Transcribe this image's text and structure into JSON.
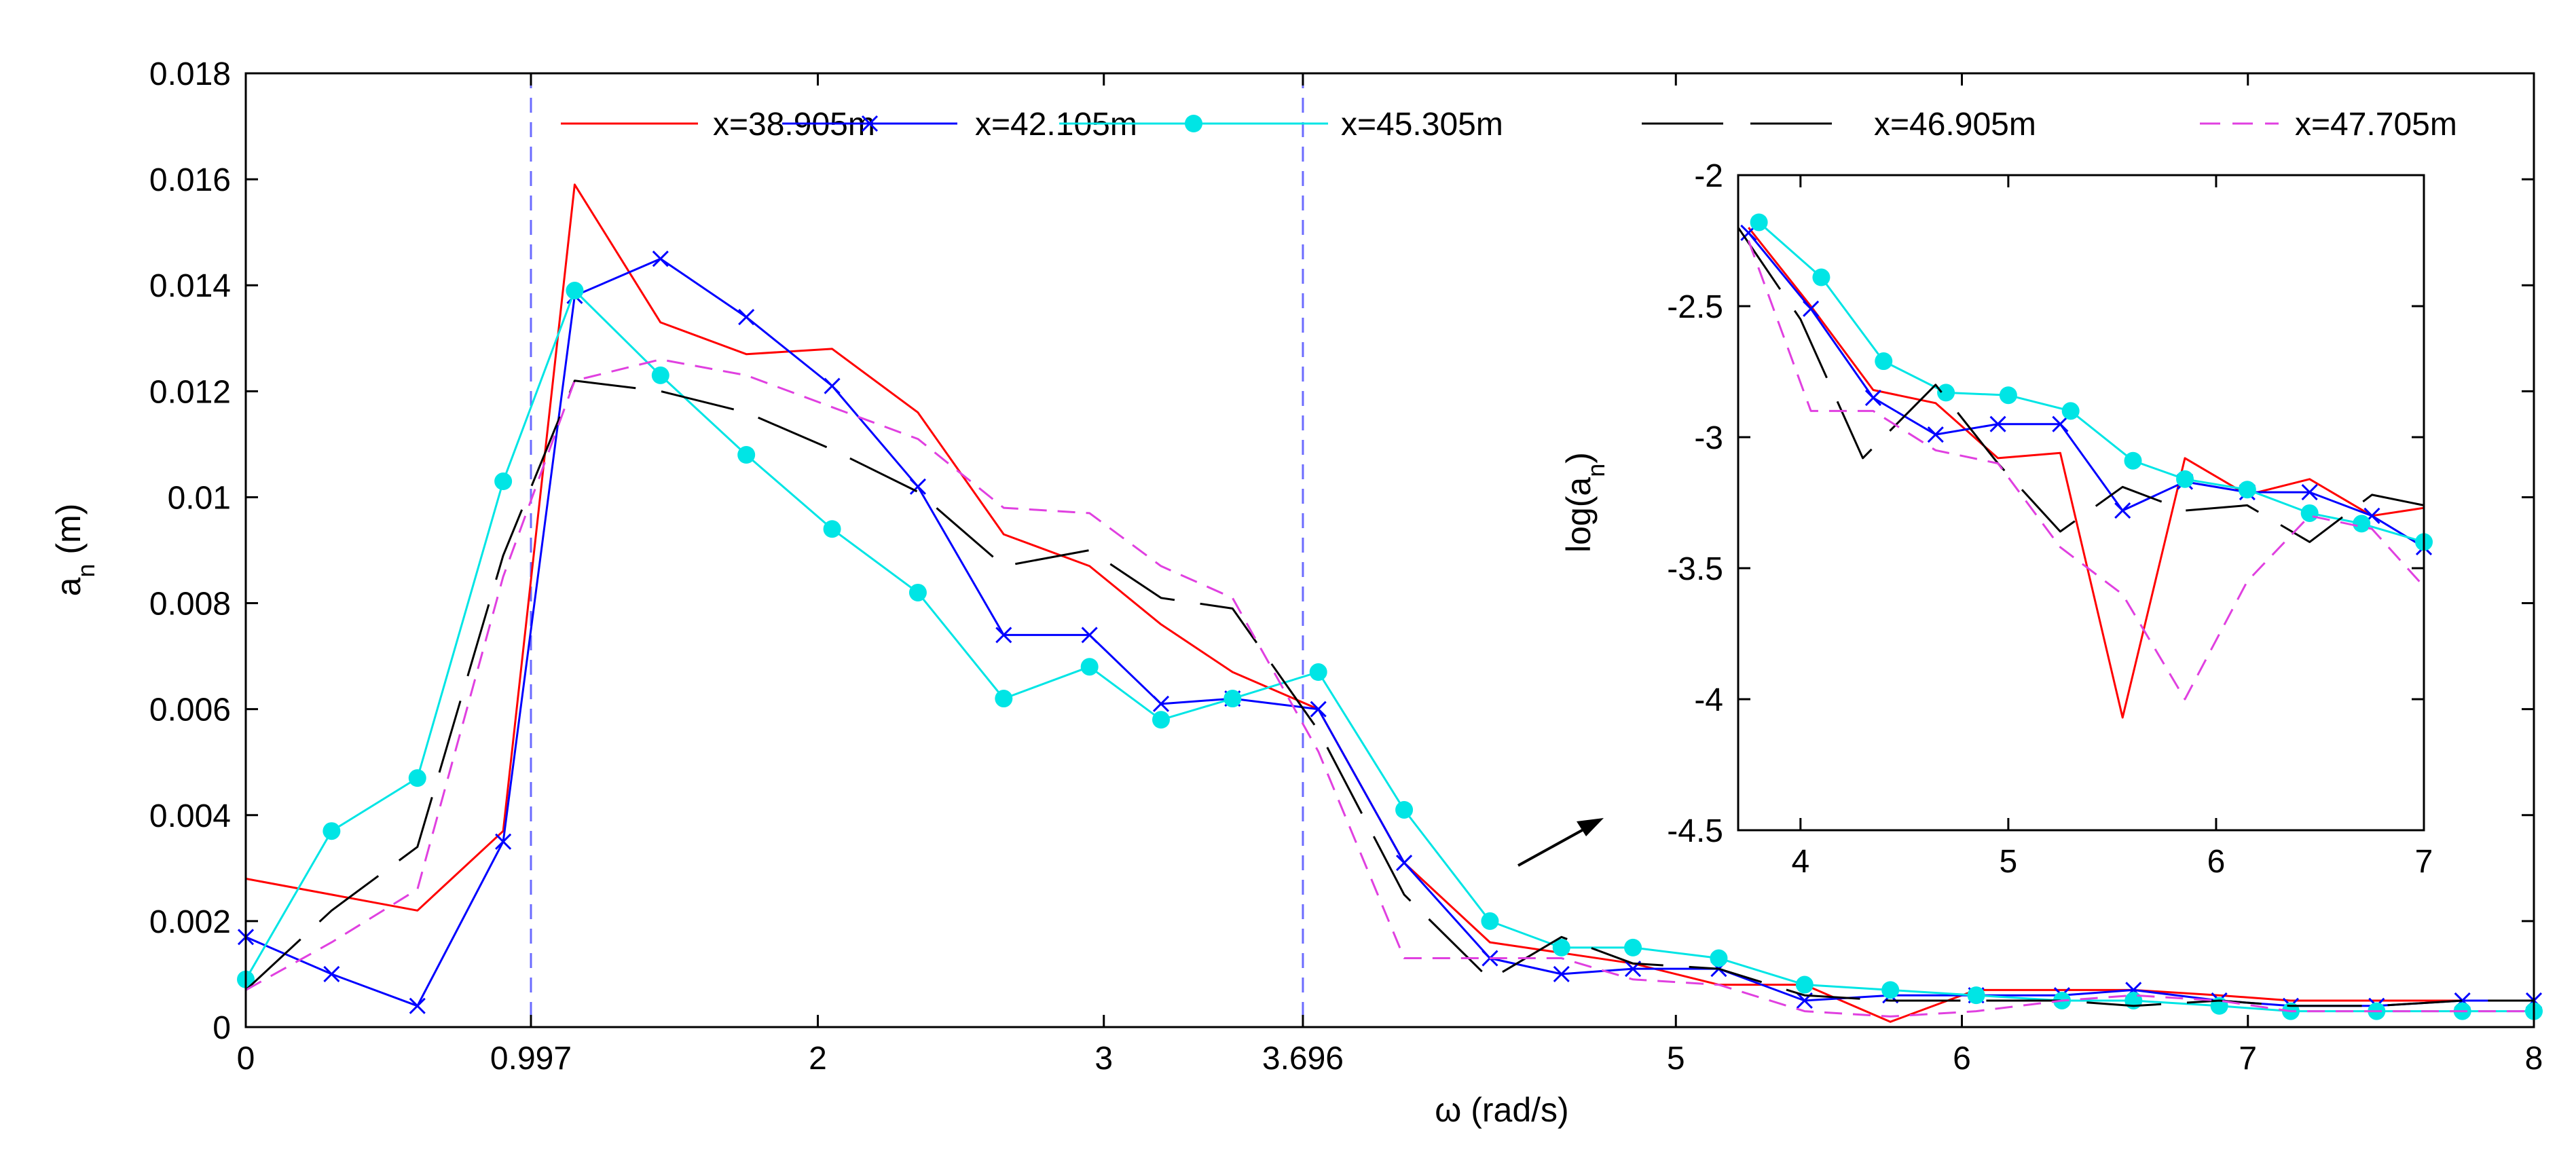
{
  "chart_data": [
    {
      "type": "line",
      "name": "main",
      "xlabel": "ω (rad/s)",
      "ylabel": "a_n (m)",
      "ylabel_base": "a",
      "ylabel_sub": "n",
      "ylabel_unit": " (m)",
      "xlim": [
        0,
        8
      ],
      "ylim": [
        0,
        0.018
      ],
      "xticks": [
        0,
        0.997,
        2,
        3,
        3.696,
        5,
        6,
        7,
        8
      ],
      "xtick_labels": [
        "0",
        "0.997",
        "2",
        "3",
        "3.696",
        "5",
        "6",
        "7",
        "8"
      ],
      "yticks": [
        0,
        0.002,
        0.004,
        0.006,
        0.008,
        0.01,
        0.012,
        0.014,
        0.016,
        0.018
      ],
      "ytick_labels": [
        "0",
        "0.002",
        "0.004",
        "0.006",
        "0.008",
        "0.01",
        "0.012",
        "0.014",
        "0.016",
        "0.018"
      ],
      "vlines": [
        0.997,
        3.696
      ],
      "legend_location": "top",
      "series": [
        {
          "name": "x=38.905m",
          "color": "#ff0000",
          "style": "solid",
          "marker": "none",
          "x": [
            0,
            0.3,
            0.6,
            0.9,
            1.15,
            1.45,
            1.75,
            2.05,
            2.35,
            2.65,
            2.95,
            3.2,
            3.45,
            3.75,
            4.05,
            4.35,
            4.6,
            4.85,
            5.15,
            5.45,
            5.75,
            6.05,
            6.35,
            6.6,
            6.9,
            7.15,
            7.45,
            7.75,
            8.0
          ],
          "y": [
            0.0028,
            0.0025,
            0.0022,
            0.0037,
            0.0159,
            0.0133,
            0.0127,
            0.0128,
            0.0116,
            0.0093,
            0.0087,
            0.0076,
            0.0067,
            0.006,
            0.0031,
            0.0016,
            0.0014,
            0.0012,
            0.0008,
            0.0008,
            0.0001,
            0.0007,
            0.0007,
            0.0007,
            0.0006,
            0.0005,
            0.0005,
            0.0005,
            0.0005
          ]
        },
        {
          "name": "x=42.105m",
          "color": "#0000ff",
          "style": "solid",
          "marker": "x",
          "x": [
            0,
            0.3,
            0.6,
            0.9,
            1.15,
            1.45,
            1.75,
            2.05,
            2.35,
            2.65,
            2.95,
            3.2,
            3.45,
            3.75,
            4.05,
            4.35,
            4.6,
            4.85,
            5.15,
            5.45,
            5.75,
            6.05,
            6.35,
            6.6,
            6.9,
            7.15,
            7.45,
            7.75,
            8.0
          ],
          "y": [
            0.0017,
            0.001,
            0.0004,
            0.0035,
            0.0138,
            0.0145,
            0.0134,
            0.0121,
            0.0102,
            0.0074,
            0.0074,
            0.0061,
            0.0062,
            0.006,
            0.0031,
            0.0013,
            0.001,
            0.0011,
            0.0011,
            0.0005,
            0.0006,
            0.0006,
            0.0006,
            0.0007,
            0.0005,
            0.0004,
            0.0004,
            0.0005,
            0.0005
          ]
        },
        {
          "name": "x=45.305m",
          "color": "#00e5e5",
          "style": "solid",
          "marker": "circle",
          "x": [
            0,
            0.3,
            0.6,
            0.9,
            1.15,
            1.45,
            1.75,
            2.05,
            2.35,
            2.65,
            2.95,
            3.2,
            3.45,
            3.75,
            4.05,
            4.35,
            4.6,
            4.85,
            5.15,
            5.45,
            5.75,
            6.05,
            6.35,
            6.6,
            6.9,
            7.15,
            7.45,
            7.75,
            8.0
          ],
          "y": [
            0.0009,
            0.0037,
            0.0047,
            0.0103,
            0.0139,
            0.0123,
            0.0108,
            0.0094,
            0.0082,
            0.0062,
            0.0068,
            0.0058,
            0.0062,
            0.0067,
            0.0041,
            0.002,
            0.0015,
            0.0015,
            0.0013,
            0.0008,
            0.0007,
            0.0006,
            0.0005,
            0.0005,
            0.0004,
            0.0003,
            0.0003,
            0.0003,
            0.0003
          ]
        },
        {
          "name": "x=46.905m",
          "color": "#000000",
          "style": "longdash",
          "marker": "none",
          "x": [
            0,
            0.3,
            0.6,
            0.9,
            1.15,
            1.45,
            1.75,
            2.05,
            2.35,
            2.65,
            2.95,
            3.2,
            3.45,
            3.75,
            4.05,
            4.35,
            4.6,
            4.85,
            5.15,
            5.45,
            5.75,
            6.05,
            6.35,
            6.6,
            6.9,
            7.15,
            7.45,
            7.75,
            8.0
          ],
          "y": [
            0.0007,
            0.0022,
            0.0034,
            0.0089,
            0.0122,
            0.012,
            0.0116,
            0.0109,
            0.0101,
            0.0087,
            0.009,
            0.0081,
            0.0079,
            0.0056,
            0.0025,
            0.0009,
            0.0017,
            0.0012,
            0.0011,
            0.0006,
            0.0005,
            0.0005,
            0.0005,
            0.0004,
            0.0005,
            0.0004,
            0.0004,
            0.0005,
            0.0005
          ]
        },
        {
          "name": "x=47.705m",
          "color": "#e040e0",
          "style": "dash",
          "marker": "none",
          "x": [
            0,
            0.3,
            0.6,
            0.9,
            1.15,
            1.45,
            1.75,
            2.05,
            2.35,
            2.65,
            2.95,
            3.2,
            3.45,
            3.75,
            4.05,
            4.35,
            4.6,
            4.85,
            5.15,
            5.45,
            5.75,
            6.05,
            6.35,
            6.6,
            6.9,
            7.15,
            7.45,
            7.75,
            8.0
          ],
          "y": [
            0.0007,
            0.0016,
            0.0026,
            0.0085,
            0.0122,
            0.0126,
            0.0123,
            0.0117,
            0.0111,
            0.0098,
            0.0097,
            0.0087,
            0.0081,
            0.0052,
            0.0013,
            0.0013,
            0.0013,
            0.0009,
            0.0008,
            0.0003,
            0.0002,
            0.0003,
            0.0005,
            0.0006,
            0.0005,
            0.0003,
            0.0003,
            0.0003,
            0.0003
          ]
        }
      ]
    },
    {
      "type": "line",
      "name": "inset",
      "xlabel": "",
      "ylabel": "log(a_n)",
      "ylabel_base": "log(a",
      "ylabel_sub": "n",
      "ylabel_unit": ")",
      "xlim": [
        3.7,
        7
      ],
      "ylim": [
        -4.5,
        -2
      ],
      "xticks": [
        4,
        5,
        6,
        7
      ],
      "xtick_labels": [
        "4",
        "5",
        "6",
        "7"
      ],
      "yticks": [
        -4.5,
        -4,
        -3.5,
        -3,
        -2.5,
        -2
      ],
      "ytick_labels": [
        "-4.5",
        "-4",
        "-3.5",
        "-3",
        "-2.5",
        "-2"
      ],
      "series": [
        {
          "name": "x=38.905m",
          "x": [
            3.75,
            4.05,
            4.35,
            4.65,
            4.95,
            5.25,
            5.55,
            5.85,
            6.15,
            6.45,
            6.75,
            7.0
          ],
          "y": [
            -2.2,
            -2.5,
            -2.82,
            -2.87,
            -3.08,
            -3.06,
            -4.07,
            -3.08,
            -3.22,
            -3.16,
            -3.3,
            -3.27
          ]
        },
        {
          "name": "x=42.105m",
          "x": [
            3.75,
            4.05,
            4.35,
            4.65,
            4.95,
            5.25,
            5.55,
            5.85,
            6.15,
            6.45,
            6.75,
            7.0
          ],
          "y": [
            -2.22,
            -2.51,
            -2.85,
            -2.99,
            -2.95,
            -2.95,
            -3.28,
            -3.17,
            -3.21,
            -3.21,
            -3.3,
            -3.42
          ]
        },
        {
          "name": "x=45.305m",
          "x": [
            3.8,
            4.1,
            4.4,
            4.7,
            5.0,
            5.3,
            5.6,
            5.85,
            6.15,
            6.45,
            6.7,
            7.0
          ],
          "y": [
            -2.18,
            -2.39,
            -2.71,
            -2.83,
            -2.84,
            -2.9,
            -3.09,
            -3.16,
            -3.2,
            -3.29,
            -3.33,
            -3.4
          ]
        },
        {
          "name": "x=46.905m",
          "x": [
            3.7,
            4.0,
            4.3,
            4.65,
            4.95,
            5.25,
            5.55,
            5.85,
            6.15,
            6.45,
            6.75,
            7.0
          ],
          "y": [
            -2.2,
            -2.55,
            -3.08,
            -2.8,
            -3.1,
            -3.36,
            -3.19,
            -3.28,
            -3.26,
            -3.4,
            -3.22,
            -3.26
          ]
        },
        {
          "name": "x=47.705m",
          "x": [
            3.75,
            4.05,
            4.35,
            4.65,
            4.95,
            5.25,
            5.55,
            5.85,
            6.15,
            6.45,
            6.75,
            7.0
          ],
          "y": [
            -2.25,
            -2.9,
            -2.9,
            -3.05,
            -3.1,
            -3.42,
            -3.6,
            -4.0,
            -3.55,
            -3.3,
            -3.35,
            -3.57
          ]
        }
      ]
    }
  ]
}
